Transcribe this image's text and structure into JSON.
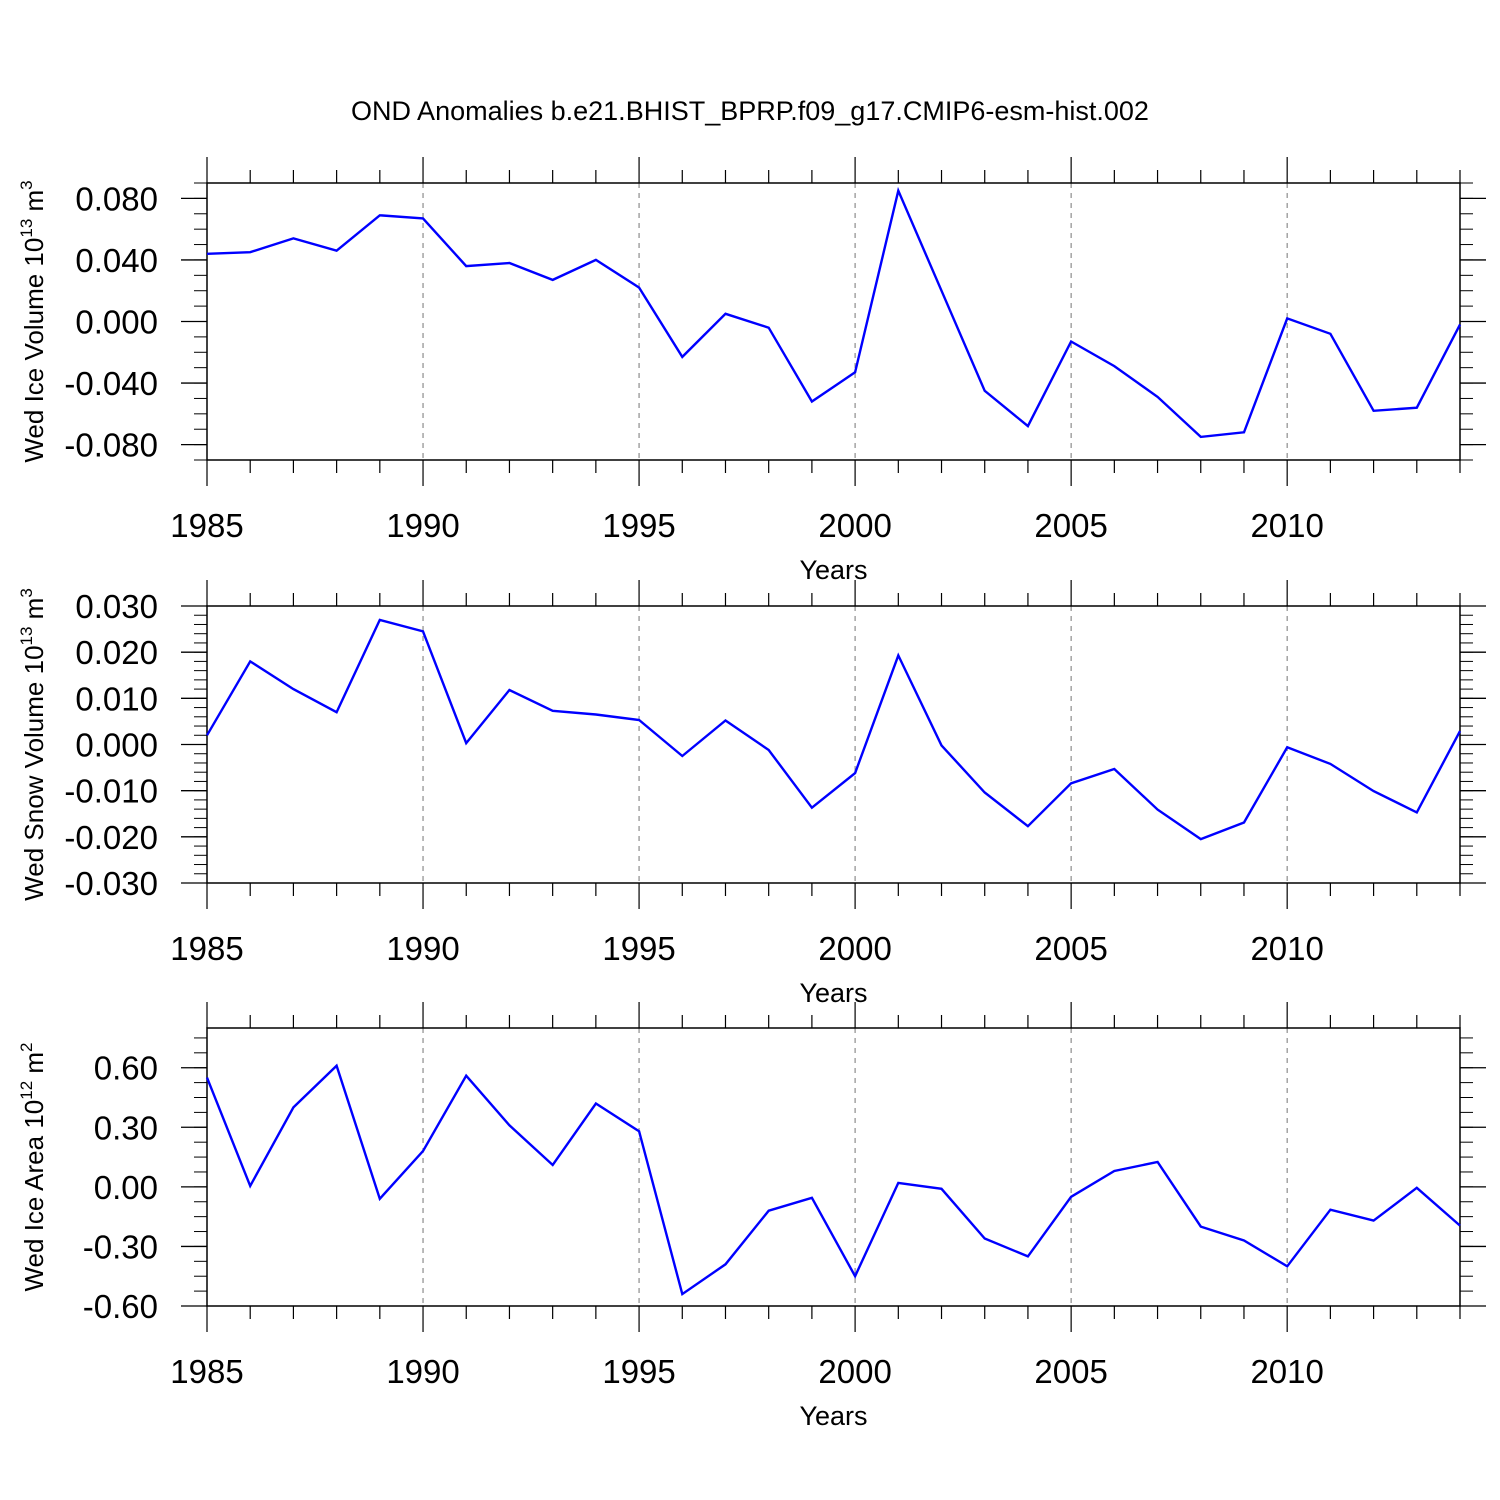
{
  "figure": {
    "title": "OND Anomalies b.e21.BHIST_BPRP.f09_g17.CMIP6-esm-hist.002"
  },
  "colors": {
    "line": "#0000ff",
    "axes": "#000000",
    "grid": "#8c8c8c",
    "background": "#ffffff"
  },
  "chart_data": [
    {
      "type": "line",
      "title": "OND Anomalies b.e21.BHIST_BPRP.f09_g17.CMIP6-esm-hist.002",
      "xlabel": "Years",
      "ylabel": {
        "base": "Wed Ice Volume 10",
        "exp": "13",
        "unit": " m",
        "unit_exp": "3"
      },
      "xlim": [
        1985,
        2014
      ],
      "ylim": [
        -0.09,
        0.09
      ],
      "x_ticks": [
        1985,
        1990,
        1995,
        2000,
        2005,
        2010
      ],
      "y_ticks": [
        0.08,
        0.04,
        0.0,
        -0.04,
        -0.08
      ],
      "y_tick_labels": [
        "0.080",
        "0.040",
        "0.000",
        "-0.040",
        "-0.080"
      ],
      "y_minor_step": 0.01,
      "grid": "vertical dashed at major x ticks",
      "series": [
        {
          "x": [
            1985,
            1986,
            1987,
            1988,
            1989,
            1990,
            1991,
            1992,
            1993,
            1994,
            1995,
            1996,
            1997,
            1998,
            1999,
            2000,
            2001,
            2002,
            2003,
            2004,
            2005,
            2006,
            2007,
            2008,
            2009,
            2010,
            2011,
            2012,
            2013,
            2014
          ],
          "values": [
            0.044,
            0.045,
            0.054,
            0.046,
            0.069,
            0.067,
            0.036,
            0.038,
            0.027,
            0.04,
            0.022,
            -0.023,
            0.005,
            -0.004,
            -0.052,
            -0.033,
            0.085,
            0.02,
            -0.045,
            -0.068,
            -0.013,
            -0.029,
            -0.049,
            -0.075,
            -0.072,
            0.002,
            -0.008,
            -0.058,
            -0.056,
            -0.002
          ]
        }
      ]
    },
    {
      "type": "line",
      "xlabel": "Years",
      "ylabel": {
        "base": "Wed Snow Volume 10",
        "exp": "13",
        "unit": " m",
        "unit_exp": "3"
      },
      "xlim": [
        1985,
        2014
      ],
      "ylim": [
        -0.03,
        0.03
      ],
      "x_ticks": [
        1985,
        1990,
        1995,
        2000,
        2005,
        2010
      ],
      "y_ticks": [
        0.03,
        0.02,
        0.01,
        0.0,
        -0.01,
        -0.02,
        -0.03
      ],
      "y_tick_labels": [
        "0.030",
        "0.020",
        "0.010",
        "0.000",
        "-0.010",
        "-0.020",
        "-0.030"
      ],
      "y_minor_step": 0.002,
      "grid": "vertical dashed at major x ticks",
      "series": [
        {
          "x": [
            1985,
            1986,
            1987,
            1988,
            1989,
            1990,
            1991,
            1992,
            1993,
            1994,
            1995,
            1996,
            1997,
            1998,
            1999,
            2000,
            2001,
            2002,
            2003,
            2004,
            2005,
            2006,
            2007,
            2008,
            2009,
            2010,
            2011,
            2012,
            2013,
            2014
          ],
          "values": [
            0.002,
            0.018,
            0.012,
            0.007,
            0.027,
            0.0245,
            0.0003,
            0.0118,
            0.0073,
            0.0065,
            0.0053,
            -0.0025,
            0.0052,
            -0.0012,
            -0.0137,
            -0.0062,
            0.0193,
            -0.0002,
            -0.0104,
            -0.0177,
            -0.0084,
            -0.0053,
            -0.0141,
            -0.0205,
            -0.0169,
            -0.0006,
            -0.0042,
            -0.0101,
            -0.0147,
            0.0029
          ]
        }
      ]
    },
    {
      "type": "line",
      "xlabel": "Years",
      "ylabel": {
        "base": "Wed Ice Area 10",
        "exp": "12",
        "unit": " m",
        "unit_exp": "2"
      },
      "xlim": [
        1985,
        2014
      ],
      "ylim": [
        -0.6,
        0.8
      ],
      "x_ticks": [
        1985,
        1990,
        1995,
        2000,
        2005,
        2010
      ],
      "y_ticks": [
        0.6,
        0.3,
        0.0,
        -0.3,
        -0.6
      ],
      "y_tick_labels": [
        "0.60",
        "0.30",
        "0.00",
        "-0.30",
        "-0.60"
      ],
      "y_minor_step": 0.075,
      "grid": "vertical dashed at major x ticks",
      "series": [
        {
          "x": [
            1985,
            1986,
            1987,
            1988,
            1989,
            1990,
            1991,
            1992,
            1993,
            1994,
            1995,
            1996,
            1997,
            1998,
            1999,
            2000,
            2001,
            2002,
            2003,
            2004,
            2005,
            2006,
            2007,
            2008,
            2009,
            2010,
            2011,
            2012,
            2013,
            2014
          ],
          "values": [
            0.55,
            0.005,
            0.4,
            0.61,
            -0.06,
            0.18,
            0.56,
            0.31,
            0.11,
            0.42,
            0.28,
            -0.54,
            -0.39,
            -0.12,
            -0.055,
            -0.45,
            0.02,
            -0.01,
            -0.26,
            -0.35,
            -0.05,
            0.08,
            0.125,
            -0.2,
            -0.27,
            -0.4,
            -0.115,
            -0.17,
            -0.005,
            -0.195
          ]
        }
      ]
    }
  ]
}
